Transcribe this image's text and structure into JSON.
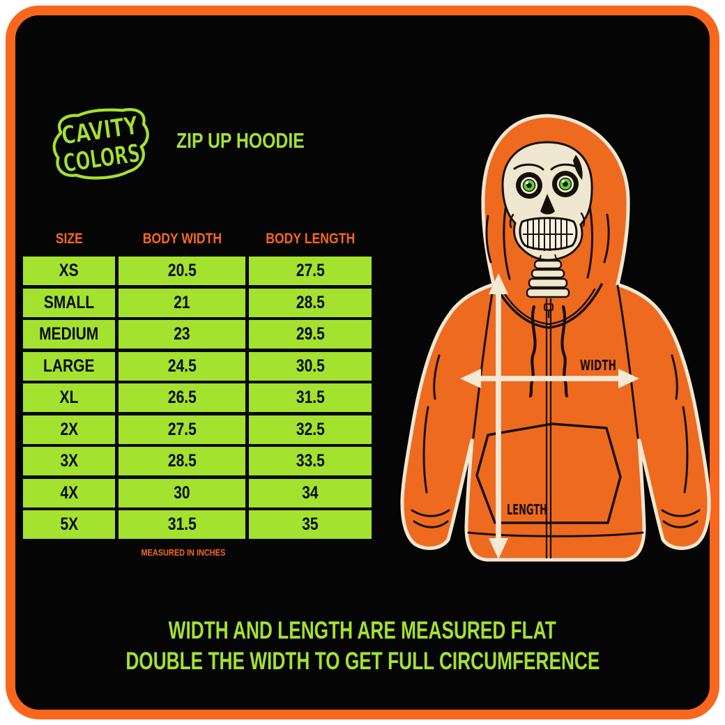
{
  "brand": {
    "logo_line1": "CAVITY",
    "logo_line2": "COLORS"
  },
  "product": {
    "title": "ZIP UP HOODIE"
  },
  "size_chart": {
    "headers": [
      "SIZE",
      "BODY WIDTH",
      "BODY LENGTH"
    ],
    "rows": [
      {
        "size": "XS",
        "body_width": "20.5",
        "body_length": "27.5"
      },
      {
        "size": "SMALL",
        "body_width": "21",
        "body_length": "28.5"
      },
      {
        "size": "MEDIUM",
        "body_width": "23",
        "body_length": "29.5"
      },
      {
        "size": "LARGE",
        "body_width": "24.5",
        "body_length": "30.5"
      },
      {
        "size": "XL",
        "body_width": "26.5",
        "body_length": "31.5"
      },
      {
        "size": "2X",
        "body_width": "27.5",
        "body_length": "32.5"
      },
      {
        "size": "3X",
        "body_width": "28.5",
        "body_length": "33.5"
      },
      {
        "size": "4X",
        "body_width": "30",
        "body_length": "34"
      },
      {
        "size": "5X",
        "body_width": "31.5",
        "body_length": "35"
      }
    ],
    "footnote": "MEASURED IN INCHES",
    "units": "inches"
  },
  "illustration": {
    "figure": "skeleton-wearing-orange-zip-hoodie",
    "width_label": "WIDTH",
    "length_label": "LENGTH"
  },
  "disclaimer": {
    "line1": "WIDTH AND LENGTH ARE MEASURED FLAT",
    "line2": "DOUBLE THE WIDTH TO GET FULL CIRCUMFERENCE"
  },
  "colors": {
    "accent_orange": "#F8671D",
    "hoodie_orange": "#EE6A1F",
    "neon_green": "#A3E22E",
    "panel_background": "#050505",
    "page_background": "#FFFFFF",
    "skull_cream": "#EFE7CF",
    "outline_cream": "#F0E7D4",
    "line_ink": "#171008",
    "eye_green": "#5BD62F"
  }
}
